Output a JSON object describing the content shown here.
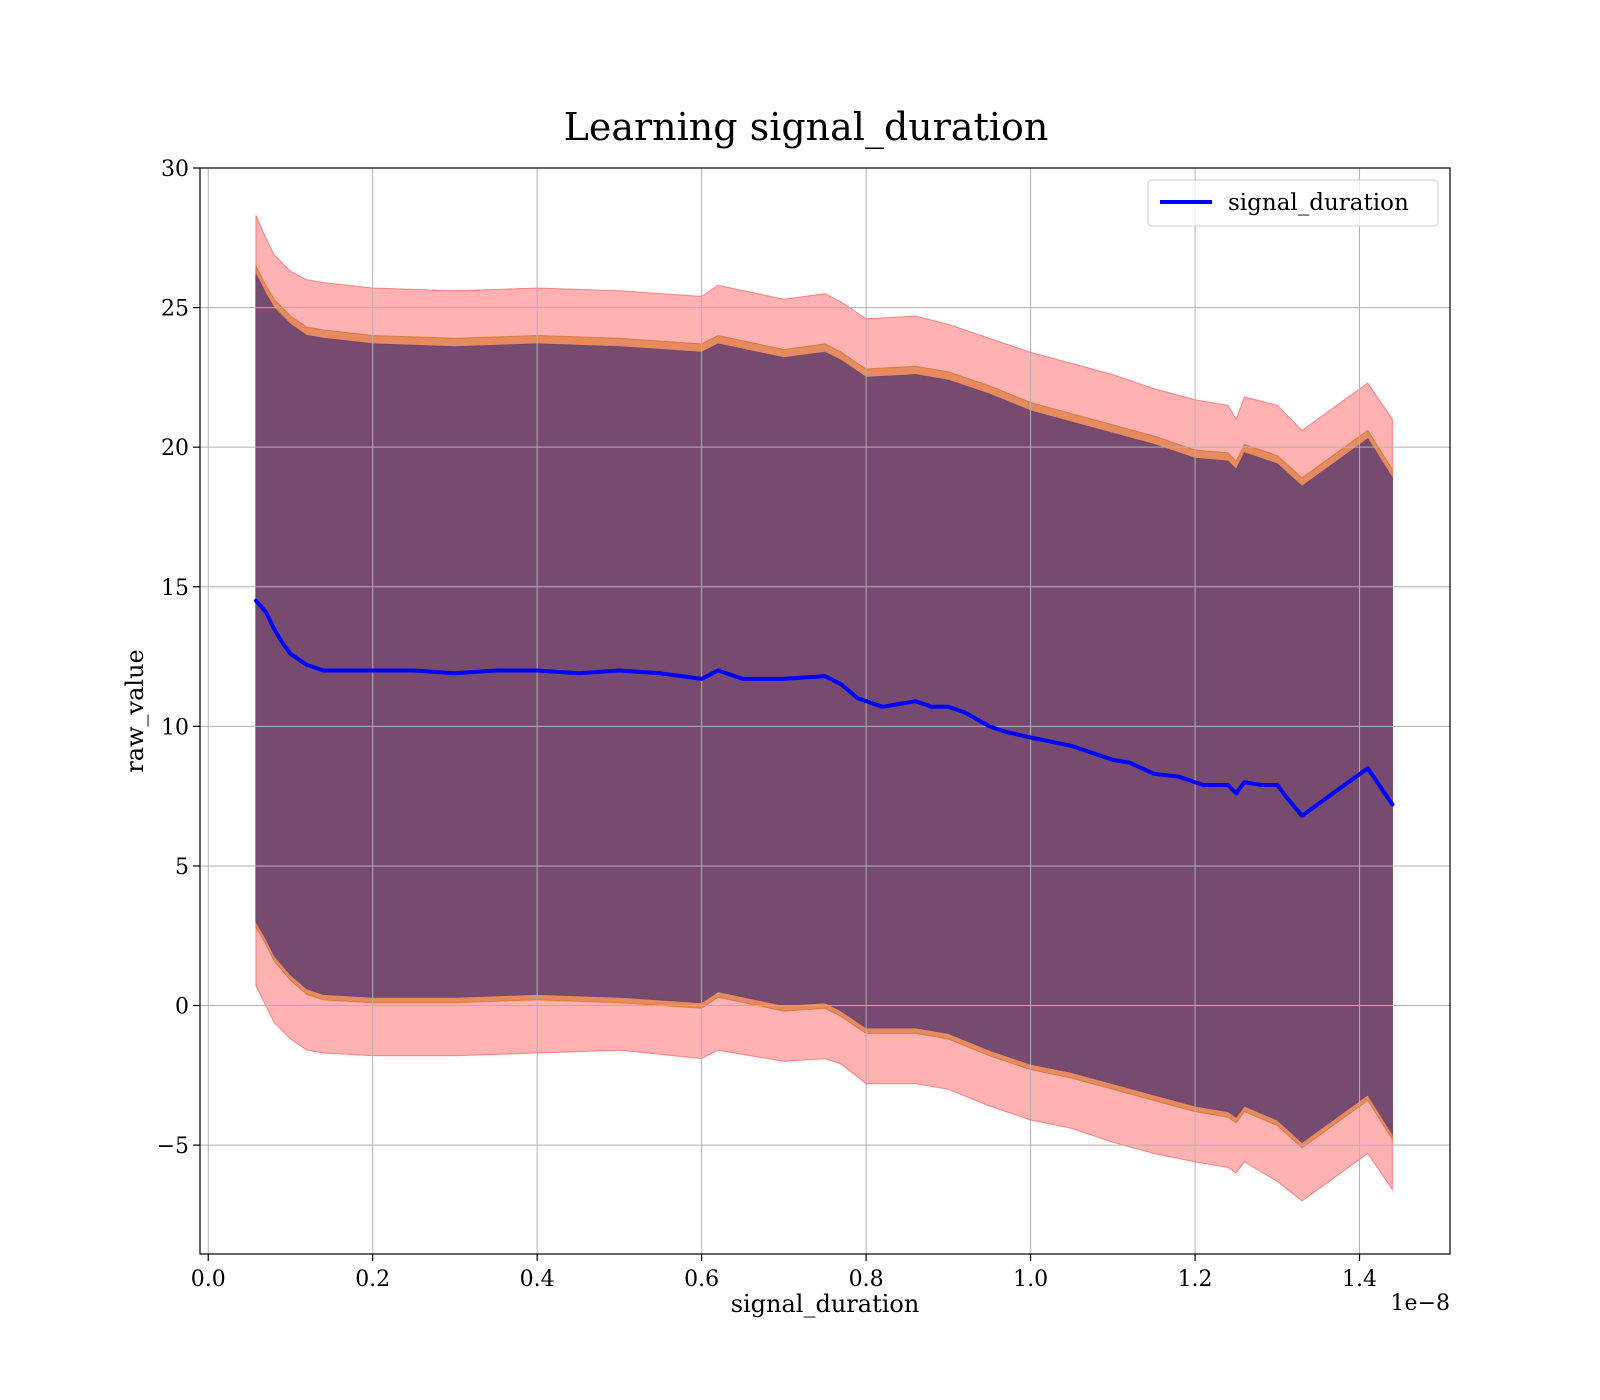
{
  "chart_data": {
    "type": "line",
    "title": "Learning signal_duration",
    "xlabel": "signal_duration",
    "ylabel": "raw_value",
    "x_offset_label": "1e−8",
    "xlim": [
      -0.01,
      1.51
    ],
    "ylim": [
      -8.9,
      30
    ],
    "x_ticks": [
      0.0,
      0.2,
      0.4,
      0.6,
      0.8,
      1.0,
      1.2,
      1.4
    ],
    "x_tick_labels": [
      "0.0",
      "0.2",
      "0.4",
      "0.6",
      "0.8",
      "1.0",
      "1.2",
      "1.4"
    ],
    "y_ticks": [
      -5,
      0,
      5,
      10,
      15,
      20,
      25,
      30
    ],
    "y_tick_labels": [
      "−5",
      "0",
      "5",
      "10",
      "15",
      "20",
      "25",
      "30"
    ],
    "grid": true,
    "legend_position": "top-right",
    "series": [
      {
        "name": "signal_duration",
        "color": "#0000ff",
        "x": [
          0.058,
          0.07,
          0.08,
          0.09,
          0.1,
          0.11,
          0.12,
          0.14,
          0.16,
          0.2,
          0.25,
          0.3,
          0.35,
          0.4,
          0.45,
          0.5,
          0.55,
          0.6,
          0.62,
          0.65,
          0.7,
          0.75,
          0.77,
          0.79,
          0.8,
          0.82,
          0.86,
          0.88,
          0.9,
          0.92,
          0.95,
          0.97,
          1.0,
          1.05,
          1.08,
          1.1,
          1.12,
          1.15,
          1.18,
          1.21,
          1.24,
          1.25,
          1.26,
          1.28,
          1.3,
          1.31,
          1.33,
          1.41,
          1.44
        ],
        "y": [
          14.5,
          14.1,
          13.5,
          13.0,
          12.6,
          12.4,
          12.2,
          12.0,
          12.0,
          12.0,
          12.0,
          11.9,
          12.0,
          12.0,
          11.9,
          12.0,
          11.9,
          11.7,
          12.0,
          11.7,
          11.7,
          11.8,
          11.5,
          11.0,
          10.9,
          10.7,
          10.9,
          10.7,
          10.7,
          10.5,
          10.0,
          9.8,
          9.6,
          9.3,
          9.0,
          8.8,
          8.7,
          8.3,
          8.2,
          7.9,
          7.9,
          7.6,
          8.0,
          7.9,
          7.9,
          7.5,
          6.8,
          8.5,
          7.2
        ]
      }
    ],
    "bands": [
      {
        "kind": "outer",
        "color": "#ff0000",
        "opacity": 0.3,
        "x": [
          0.058,
          0.07,
          0.08,
          0.1,
          0.12,
          0.14,
          0.2,
          0.3,
          0.4,
          0.5,
          0.6,
          0.62,
          0.7,
          0.75,
          0.77,
          0.8,
          0.86,
          0.9,
          0.95,
          1.0,
          1.05,
          1.1,
          1.15,
          1.2,
          1.24,
          1.25,
          1.26,
          1.3,
          1.33,
          1.41,
          1.44
        ],
        "upper": [
          28.3,
          27.5,
          26.9,
          26.3,
          26.0,
          25.9,
          25.7,
          25.6,
          25.7,
          25.6,
          25.4,
          25.8,
          25.3,
          25.5,
          25.2,
          24.6,
          24.7,
          24.4,
          23.9,
          23.4,
          23.0,
          22.6,
          22.1,
          21.7,
          21.5,
          21.0,
          21.8,
          21.5,
          20.6,
          22.3,
          21.0
        ],
        "lower": [
          0.7,
          0.0,
          -0.6,
          -1.2,
          -1.6,
          -1.7,
          -1.8,
          -1.8,
          -1.7,
          -1.6,
          -1.9,
          -1.6,
          -2.0,
          -1.9,
          -2.1,
          -2.8,
          -2.8,
          -3.0,
          -3.6,
          -4.1,
          -4.4,
          -4.9,
          -5.3,
          -5.6,
          -5.8,
          -6.0,
          -5.6,
          -6.3,
          -7.0,
          -5.3,
          -6.6
        ]
      },
      {
        "kind": "middle",
        "color": "#d2691e",
        "opacity": 0.55,
        "x": [
          0.058,
          0.07,
          0.08,
          0.1,
          0.12,
          0.14,
          0.2,
          0.3,
          0.4,
          0.5,
          0.6,
          0.62,
          0.7,
          0.75,
          0.77,
          0.8,
          0.86,
          0.9,
          0.95,
          1.0,
          1.05,
          1.1,
          1.15,
          1.2,
          1.24,
          1.25,
          1.26,
          1.3,
          1.33,
          1.41,
          1.44
        ],
        "upper": [
          26.5,
          25.8,
          25.3,
          24.7,
          24.3,
          24.2,
          24.0,
          23.9,
          24.0,
          23.9,
          23.7,
          24.0,
          23.5,
          23.7,
          23.4,
          22.8,
          22.9,
          22.7,
          22.2,
          21.6,
          21.2,
          20.8,
          20.4,
          19.9,
          19.8,
          19.5,
          20.1,
          19.7,
          18.9,
          20.6,
          19.2
        ],
        "lower": [
          2.8,
          2.2,
          1.6,
          0.9,
          0.4,
          0.2,
          0.1,
          0.1,
          0.2,
          0.1,
          -0.1,
          0.3,
          -0.2,
          -0.1,
          -0.4,
          -1.0,
          -1.0,
          -1.2,
          -1.8,
          -2.3,
          -2.6,
          -3.0,
          -3.4,
          -3.8,
          -4.0,
          -4.2,
          -3.8,
          -4.3,
          -5.1,
          -3.4,
          -4.8
        ]
      },
      {
        "kind": "inner",
        "color": "#704870",
        "opacity": 0.95,
        "x": [
          0.058,
          0.07,
          0.08,
          0.1,
          0.12,
          0.14,
          0.2,
          0.3,
          0.4,
          0.5,
          0.6,
          0.62,
          0.7,
          0.75,
          0.77,
          0.8,
          0.86,
          0.9,
          0.95,
          1.0,
          1.05,
          1.1,
          1.15,
          1.2,
          1.24,
          1.25,
          1.26,
          1.3,
          1.33,
          1.41,
          1.44
        ],
        "upper": [
          26.2,
          25.5,
          25.0,
          24.4,
          24.0,
          23.9,
          23.7,
          23.6,
          23.7,
          23.6,
          23.4,
          23.7,
          23.2,
          23.4,
          23.1,
          22.5,
          22.6,
          22.4,
          21.9,
          21.3,
          20.9,
          20.5,
          20.1,
          19.6,
          19.5,
          19.2,
          19.8,
          19.4,
          18.6,
          20.3,
          18.9
        ],
        "lower": [
          3.0,
          2.4,
          1.8,
          1.1,
          0.6,
          0.4,
          0.3,
          0.3,
          0.4,
          0.3,
          0.1,
          0.5,
          0.0,
          0.1,
          -0.2,
          -0.8,
          -0.8,
          -1.0,
          -1.6,
          -2.1,
          -2.4,
          -2.8,
          -3.2,
          -3.6,
          -3.8,
          -4.0,
          -3.6,
          -4.1,
          -4.9,
          -3.2,
          -4.6
        ]
      }
    ]
  }
}
